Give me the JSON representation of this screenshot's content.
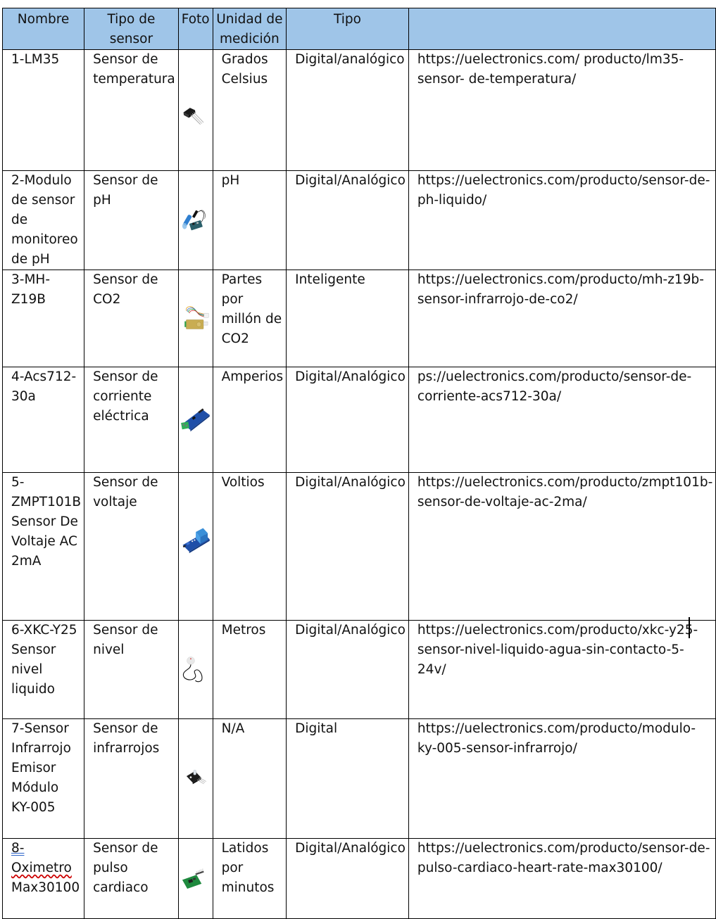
{
  "headers": {
    "nombre": "Nombre",
    "tipo_sensor": "Tipo de sensor",
    "foto": "Foto",
    "unidad": "Unidad de medición",
    "tipo": "Tipo",
    "link": ""
  },
  "rows": [
    {
      "nombre": "1-LM35",
      "tipo_sensor": "Sensor de temperatura",
      "unidad": "Grados Celsius",
      "tipo": "Digital/analógico",
      "link": "https://uelectronics.com/ producto/lm35-sensor- de-temperatura/"
    },
    {
      "nombre": "2-Modulo de sensor de monitoreo de pH",
      "tipo_sensor": "Sensor de pH",
      "unidad": "pH",
      "tipo": "Digital/Analógico",
      "link": "https://uelectronics.com/producto/sensor-de-ph-liquido/"
    },
    {
      "nombre": "3-MH-Z19B",
      "tipo_sensor": "Sensor de CO2",
      "unidad": "Partes por millón de CO2",
      "tipo": "Inteligente",
      "link": "https://uelectronics.com/producto/mh-z19b-sensor-infrarrojo-de-co2/"
    },
    {
      "nombre": "4-Acs712-30a",
      "tipo_sensor": "Sensor de corriente eléctrica",
      "unidad": "Amperios",
      "tipo": "Digital/Analógico",
      "link": "ps://uelectronics.com/producto/sensor-de-corriente-acs712-30a/"
    },
    {
      "nombre": "5-ZMPT101B Sensor De Voltaje AC 2mA",
      "tipo_sensor": "Sensor de voltaje",
      "unidad": "Voltios",
      "tipo": "Digital/Analógico",
      "link": "https://uelectronics.com/producto/zmpt101b-sensor-de-voltaje-ac-2ma/"
    },
    {
      "nombre": "6-XKC-Y25 Sensor nivel liquido",
      "tipo_sensor": "Sensor de nivel",
      "unidad": "Metros",
      "tipo": "Digital/Analógico",
      "link": "https://uelectronics.com/producto/xkc-y25-sensor-nivel-liquido-agua-sin-contacto-5-24v/"
    },
    {
      "nombre": "7-Sensor Infrarrojo Emisor Módulo KY-005",
      "tipo_sensor": "Sensor de infrarrojos",
      "unidad": "N/A",
      "tipo": "Digital",
      "link": "https://uelectronics.com/producto/modulo-ky-005-sensor-infrarrojo/"
    },
    {
      "nombre_a": "8-",
      "nombre_b": "Oximetro",
      "nombre_c": "Max30100",
      "tipo_sensor": "Sensor de pulso cardiaco",
      "unidad": "Latidos por minutos",
      "tipo": "Digital/Analógico",
      "link": "https://uelectronics.com/producto/sensor-de-pulso-cardiaco-heart-rate-max30100/"
    }
  ],
  "icons": [
    "lm35-transistor-icon",
    "ph-probe-module-icon",
    "co2-sensor-module-icon",
    "current-sensor-board-icon",
    "voltage-transformer-board-icon",
    "liquid-level-sensor-icon",
    "ir-emitter-module-icon",
    "pulse-oximeter-board-icon"
  ]
}
